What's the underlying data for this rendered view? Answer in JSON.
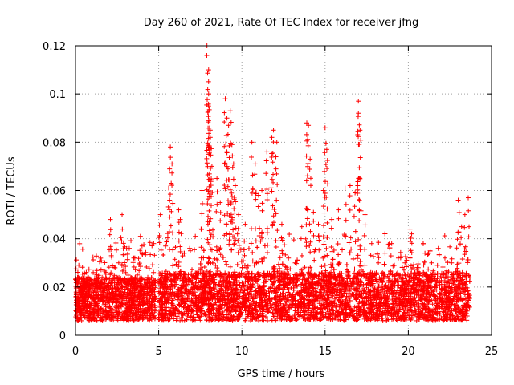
{
  "chart_data": {
    "type": "scatter",
    "title": "Day 260 of 2021, Rate Of TEC Index for receiver jfng",
    "xlabel": "GPS time / hours",
    "ylabel": "ROTI / TECUs",
    "xlim": [
      0,
      25
    ],
    "ylim": [
      0,
      0.12
    ],
    "x_ticks": [
      0,
      5,
      10,
      15,
      20,
      25
    ],
    "x_tick_labels": [
      "0",
      "5",
      "10",
      "15",
      "20",
      "25"
    ],
    "y_ticks": [
      0,
      0.02,
      0.04,
      0.06,
      0.08,
      0.1,
      0.12
    ],
    "y_tick_labels": [
      "0",
      "0.02",
      "0.04",
      "0.06",
      "0.08",
      "0.1",
      "0.12"
    ],
    "grid": true,
    "marker": "+",
    "series_color": "#ff0000",
    "series": [
      {
        "name": "ROTI",
        "x": [
          0.2,
          0.5,
          0.8,
          1.2,
          1.6,
          2.0,
          2.1,
          2.6,
          2.8,
          3.1,
          3.5,
          3.9,
          4.3,
          4.7,
          5.1,
          5.3,
          5.6,
          5.7,
          5.8,
          6.2,
          6.3,
          6.5,
          6.9,
          7.2,
          7.6,
          7.9,
          8.0,
          8.0,
          8.0,
          8.1,
          8.1,
          8.2,
          8.5,
          8.7,
          9.0,
          9.1,
          9.2,
          9.3,
          9.4,
          9.5,
          9.6,
          9.8,
          10.2,
          10.6,
          10.8,
          11.0,
          11.2,
          11.5,
          11.8,
          11.9,
          12.1,
          12.4,
          12.8,
          13.2,
          13.6,
          13.9,
          14.0,
          14.1,
          14.3,
          14.6,
          14.9,
          15.0,
          15.1,
          15.4,
          15.8,
          16.2,
          16.5,
          16.8,
          17.0,
          17.0,
          17.1,
          17.4,
          17.8,
          18.2,
          18.6,
          19.0,
          19.4,
          19.8,
          20.1,
          20.2,
          20.6,
          21.0,
          21.4,
          21.8,
          22.2,
          22.6,
          23.0,
          23.2,
          23.4,
          23.6
        ],
        "y": [
          0.029,
          0.016,
          0.012,
          0.018,
          0.024,
          0.014,
          0.048,
          0.03,
          0.05,
          0.016,
          0.032,
          0.041,
          0.022,
          0.038,
          0.05,
          0.016,
          0.061,
          0.078,
          0.071,
          0.052,
          0.048,
          0.024,
          0.035,
          0.041,
          0.06,
          0.12,
          0.11,
          0.1,
          0.095,
          0.082,
          0.085,
          0.07,
          0.065,
          0.055,
          0.098,
          0.09,
          0.087,
          0.093,
          0.079,
          0.071,
          0.062,
          0.05,
          0.046,
          0.08,
          0.071,
          0.058,
          0.06,
          0.076,
          0.082,
          0.085,
          0.08,
          0.046,
          0.032,
          0.03,
          0.045,
          0.088,
          0.087,
          0.073,
          0.051,
          0.046,
          0.06,
          0.086,
          0.077,
          0.048,
          0.052,
          0.061,
          0.062,
          0.059,
          0.097,
          0.092,
          0.085,
          0.05,
          0.038,
          0.03,
          0.034,
          0.038,
          0.032,
          0.03,
          0.044,
          0.042,
          0.028,
          0.034,
          0.03,
          0.036,
          0.032,
          0.03,
          0.056,
          0.045,
          0.05,
          0.057
        ]
      }
    ],
    "dense_band": {
      "description_note": "",
      "segments": [
        {
          "x_start": 0.0,
          "x_end": 4.8,
          "y_low": 0.006,
          "y_high": 0.024
        },
        {
          "x_start": 5.0,
          "x_end": 23.7,
          "y_low": 0.006,
          "y_high": 0.026
        }
      ]
    }
  }
}
